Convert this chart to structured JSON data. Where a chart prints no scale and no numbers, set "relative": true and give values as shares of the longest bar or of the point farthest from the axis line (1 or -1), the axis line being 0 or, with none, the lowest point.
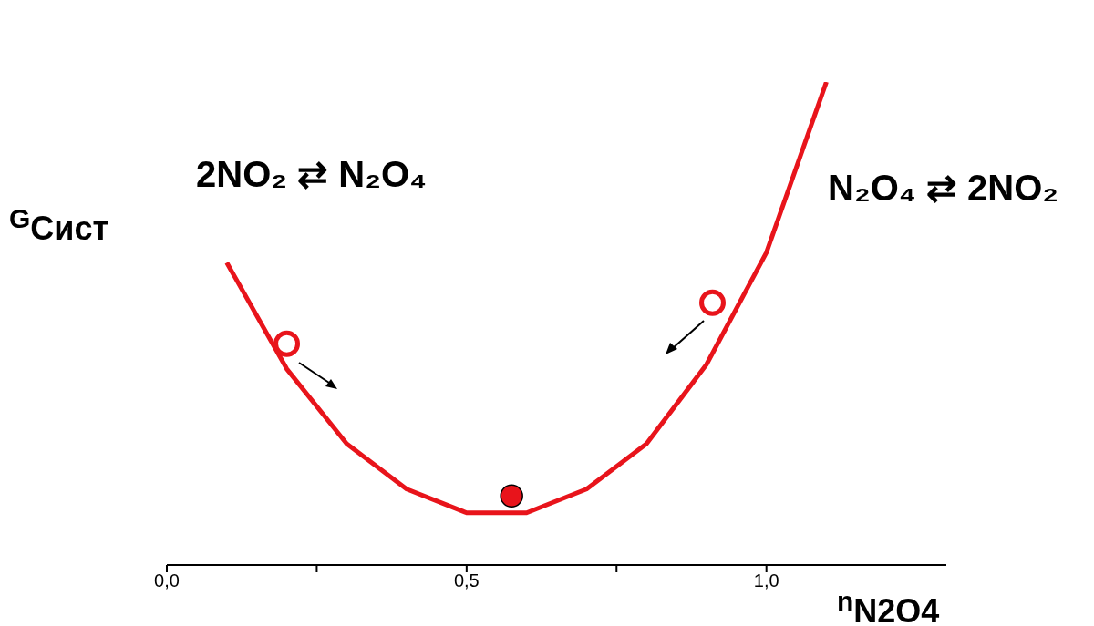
{
  "chart_data": {
    "type": "line",
    "relative": true,
    "xlabel": "$^{n}$N2O4",
    "ylabel": "$^{G}$Сист",
    "annotations": [
      "2NO₂ ⇄ N₂O₄",
      "N₂O₄ ⇄ 2NO₂"
    ],
    "xlim": [
      0,
      1.3
    ],
    "xticks": [
      {
        "value": 0,
        "label": "0,0"
      },
      {
        "value": 0.25,
        "label": null
      },
      {
        "value": 0.5,
        "label": "0,5"
      },
      {
        "value": 0.75,
        "label": null
      },
      {
        "value": 1,
        "label": "1,0"
      }
    ],
    "series": [
      {
        "type": "line",
        "color": "#e8141b",
        "x": [
          0.1,
          0.2,
          0.3,
          0.4,
          0.5,
          0.6,
          0.7,
          0.8,
          0.9,
          1.0,
          1.1
        ],
        "values": [
          0.626,
          0.406,
          0.251,
          0.157,
          0.108,
          0.108,
          0.157,
          0.251,
          0.415,
          0.647,
          1
        ]
      },
      {
        "type": "scatter",
        "color": "#e8141b",
        "marker": "circle",
        "x": [
          0.2,
          0.91
        ],
        "values": [
          0.458,
          0.543
        ]
      },
      {
        "type": "scatter",
        "color": "#e8141b",
        "marker": "circle",
        "x": [
          0.575
        ],
        "values": [
          0.143
        ]
      }
    ],
    "grid": false,
    "tick_labels": "x"
  }
}
